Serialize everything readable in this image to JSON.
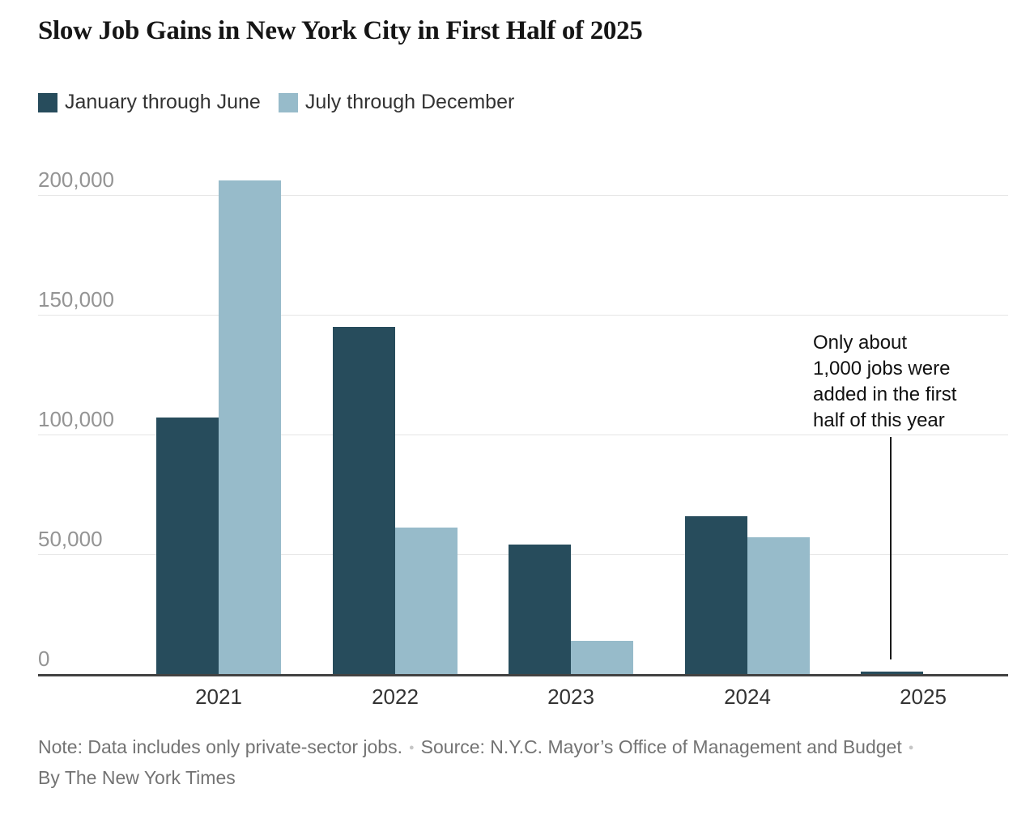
{
  "title": "Slow Job Gains in New York City in First Half of 2025",
  "legend": [
    {
      "label": "January through June",
      "color": "#274C5C"
    },
    {
      "label": "July through December",
      "color": "#97BBCA"
    }
  ],
  "annotation": {
    "lines": [
      "Only about",
      "1,000 jobs were",
      "added in the first",
      "half of this year"
    ]
  },
  "footer": {
    "note": "Note: Data includes only private-sector jobs.",
    "source": "Source: N.Y.C. Mayor’s Office of Management and Budget",
    "byline": "By The New York Times",
    "bullet": "●"
  },
  "colors": {
    "first_half": "#274C5C",
    "second_half": "#97BBCA",
    "gridline": "#e6e6e6",
    "axis_line": "#424242",
    "tick_label": "#949494",
    "year_label": "#333333"
  },
  "chart_data": {
    "type": "bar",
    "title": "Slow Job Gains in New York City in First Half of 2025",
    "categories": [
      "2021",
      "2022",
      "2023",
      "2024",
      "2025"
    ],
    "series": [
      {
        "name": "January through June",
        "color": "#274C5C",
        "values": [
          107000,
          145000,
          54000,
          66000,
          1000
        ]
      },
      {
        "name": "July through December",
        "color": "#97BBCA",
        "values": [
          206000,
          61000,
          14000,
          57000,
          null
        ]
      }
    ],
    "xlabel": "",
    "ylabel": "",
    "ylim": [
      0,
      200000
    ],
    "yticks": [
      0,
      50000,
      100000,
      150000,
      200000
    ],
    "ytick_labels": [
      "0",
      "50,000",
      "100,000",
      "150,000",
      "200,000"
    ],
    "grid": true,
    "legend_position": "top-left",
    "annotation": "Only about 1,000 jobs were added in the first half of this year",
    "note": "Data includes only private-sector jobs.",
    "source": "N.Y.C. Mayor’s Office of Management and Budget",
    "byline": "By The New York Times"
  }
}
